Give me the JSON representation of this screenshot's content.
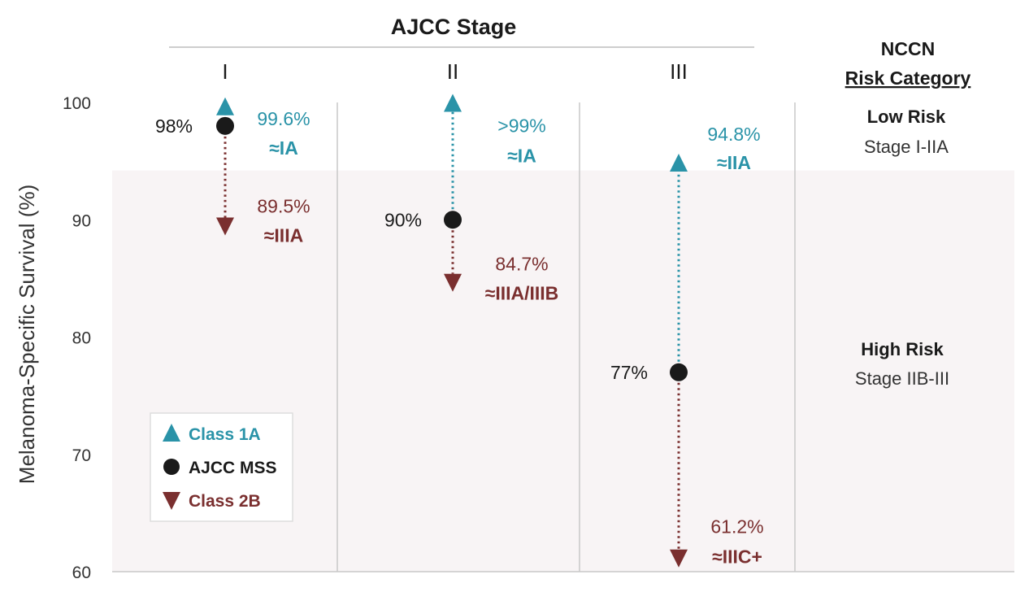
{
  "chart_data": {
    "type": "scatter",
    "header": "AJCC Stage",
    "ylabel": "Melanoma-Specific Survival (%)",
    "ylim": [
      60,
      100
    ],
    "yticks": [
      60,
      70,
      80,
      90,
      100
    ],
    "categories": [
      "I",
      "II",
      "III"
    ],
    "risk_column": {
      "title_line1": "NCCN",
      "title_line2": "Risk Category",
      "low_threshold": 94.2,
      "low": {
        "title": "Low Risk",
        "subtitle": "Stage I-IIA"
      },
      "high": {
        "title": "High Risk",
        "subtitle": "Stage IIB-III"
      }
    },
    "series": [
      {
        "name": "Class 1A",
        "marker": "triangle-up",
        "color": "#2a93a8",
        "values": [
          99.6,
          99.9,
          94.8
        ],
        "labels": [
          "99.6%",
          ">99%",
          "94.8%"
        ],
        "stage_labels": [
          "≈IA",
          "≈IA",
          "≈IIA"
        ]
      },
      {
        "name": "AJCC MSS",
        "marker": "circle",
        "color": "#1a1a1a",
        "values": [
          98,
          90,
          77
        ],
        "labels": [
          "98%",
          "90%",
          "77%"
        ]
      },
      {
        "name": "Class 2B",
        "marker": "triangle-down",
        "color": "#7a2f2f",
        "values": [
          89.5,
          84.7,
          61.2
        ],
        "labels": [
          "89.5%",
          "84.7%",
          "61.2%"
        ],
        "stage_labels": [
          "≈IIIA",
          "≈IIIA/IIIB",
          "≈IIIC+"
        ]
      }
    ],
    "legend_position": "bottom-left",
    "colors": {
      "low_band": "#ffffff",
      "high_band": "#f8f4f5",
      "divider": "#c8c8c8"
    }
  }
}
